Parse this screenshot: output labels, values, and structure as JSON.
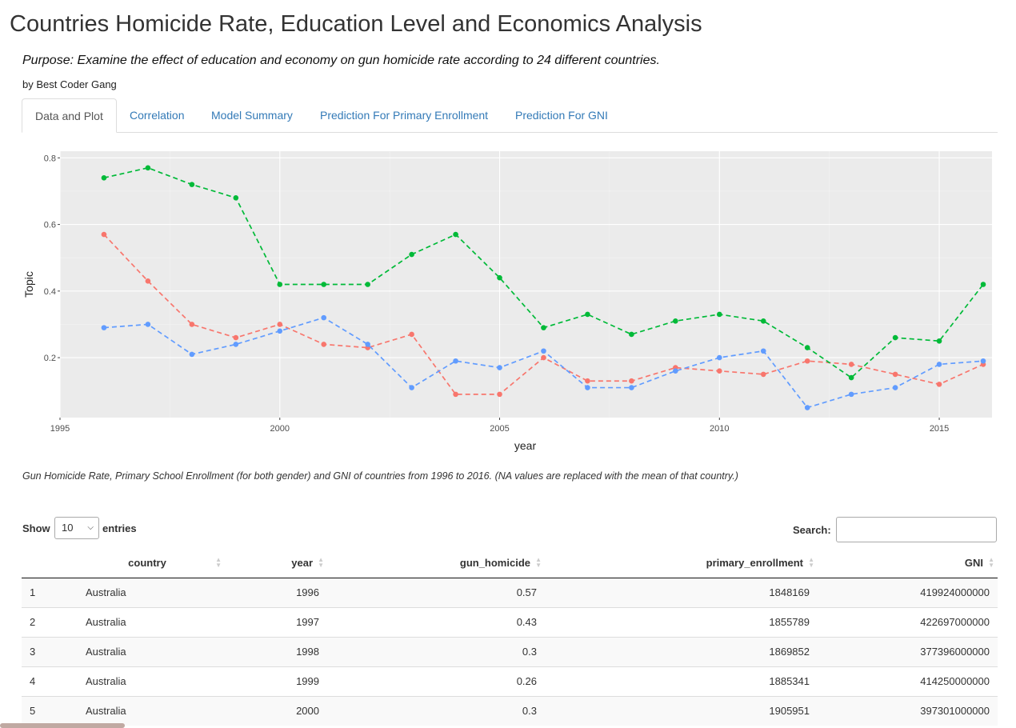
{
  "page_title": "Countries Homicide Rate, Education Level and Economics Analysis",
  "purpose": "Purpose: Examine the effect of education and economy on gun homicide rate according to 24 different countries.",
  "byline": "by Best Coder Gang",
  "tabs": [
    {
      "label": "Data and Plot"
    },
    {
      "label": "Correlation"
    },
    {
      "label": "Model Summary"
    },
    {
      "label": "Prediction For Primary Enrollment"
    },
    {
      "label": "Prediction For GNI"
    }
  ],
  "chart_data": {
    "type": "line",
    "xlabel": "year",
    "ylabel": "Topic",
    "x": [
      1996,
      1997,
      1998,
      1999,
      2000,
      2001,
      2002,
      2003,
      2004,
      2005,
      2006,
      2007,
      2008,
      2009,
      2010,
      2011,
      2012,
      2013,
      2014,
      2015,
      2016
    ],
    "xlim": [
      1995,
      2016.2
    ],
    "ylim": [
      0.02,
      0.82
    ],
    "xticks": [
      1995,
      2000,
      2005,
      2010,
      2015
    ],
    "yticks": [
      0.2,
      0.4,
      0.6,
      0.8
    ],
    "ytick_labels": [
      "0.2",
      "0.4",
      "0.6",
      "0.8"
    ],
    "grid": true,
    "legend": "none",
    "series": [
      {
        "color": "#f8766d",
        "values": [
          0.57,
          0.43,
          0.3,
          0.26,
          0.3,
          0.24,
          0.23,
          0.27,
          0.09,
          0.09,
          0.2,
          0.13,
          0.13,
          0.17,
          0.16,
          0.15,
          0.19,
          0.18,
          0.15,
          0.12,
          0.18
        ]
      },
      {
        "color": "#00ba38",
        "values": [
          0.74,
          0.77,
          0.72,
          0.68,
          0.42,
          0.42,
          0.42,
          0.51,
          0.57,
          0.44,
          0.29,
          0.33,
          0.27,
          0.31,
          0.33,
          0.31,
          0.23,
          0.14,
          0.26,
          0.25,
          0.42
        ]
      },
      {
        "color": "#619cff",
        "values": [
          0.29,
          0.3,
          0.21,
          0.24,
          0.28,
          0.32,
          0.24,
          0.11,
          0.19,
          0.17,
          0.22,
          0.11,
          0.11,
          0.16,
          0.2,
          0.22,
          0.05,
          0.09,
          0.11,
          0.18,
          0.19
        ]
      }
    ]
  },
  "caption": "Gun Homicide Rate, Primary School Enrollment (for both gender) and GNI of countries from 1996 to 2016. (NA values are replaced with the mean of that country.)",
  "table_controls": {
    "show_label": "Show",
    "entries_label": "entries",
    "length_value": "10",
    "search_label": "Search:"
  },
  "table": {
    "columns": [
      "",
      "country",
      "year",
      "gun_homicide",
      "primary_enrollment",
      "GNI"
    ],
    "rows": [
      [
        "1",
        "Australia",
        "1996",
        "0.57",
        "1848169",
        "419924000000"
      ],
      [
        "2",
        "Australia",
        "1997",
        "0.43",
        "1855789",
        "422697000000"
      ],
      [
        "3",
        "Australia",
        "1998",
        "0.3",
        "1869852",
        "377396000000"
      ],
      [
        "4",
        "Australia",
        "1999",
        "0.26",
        "1885341",
        "414250000000"
      ],
      [
        "5",
        "Australia",
        "2000",
        "0.3",
        "1905951",
        "397301000000"
      ]
    ]
  },
  "colors": {
    "accent": "#337ab7",
    "panel_bg": "#ebebeb"
  }
}
